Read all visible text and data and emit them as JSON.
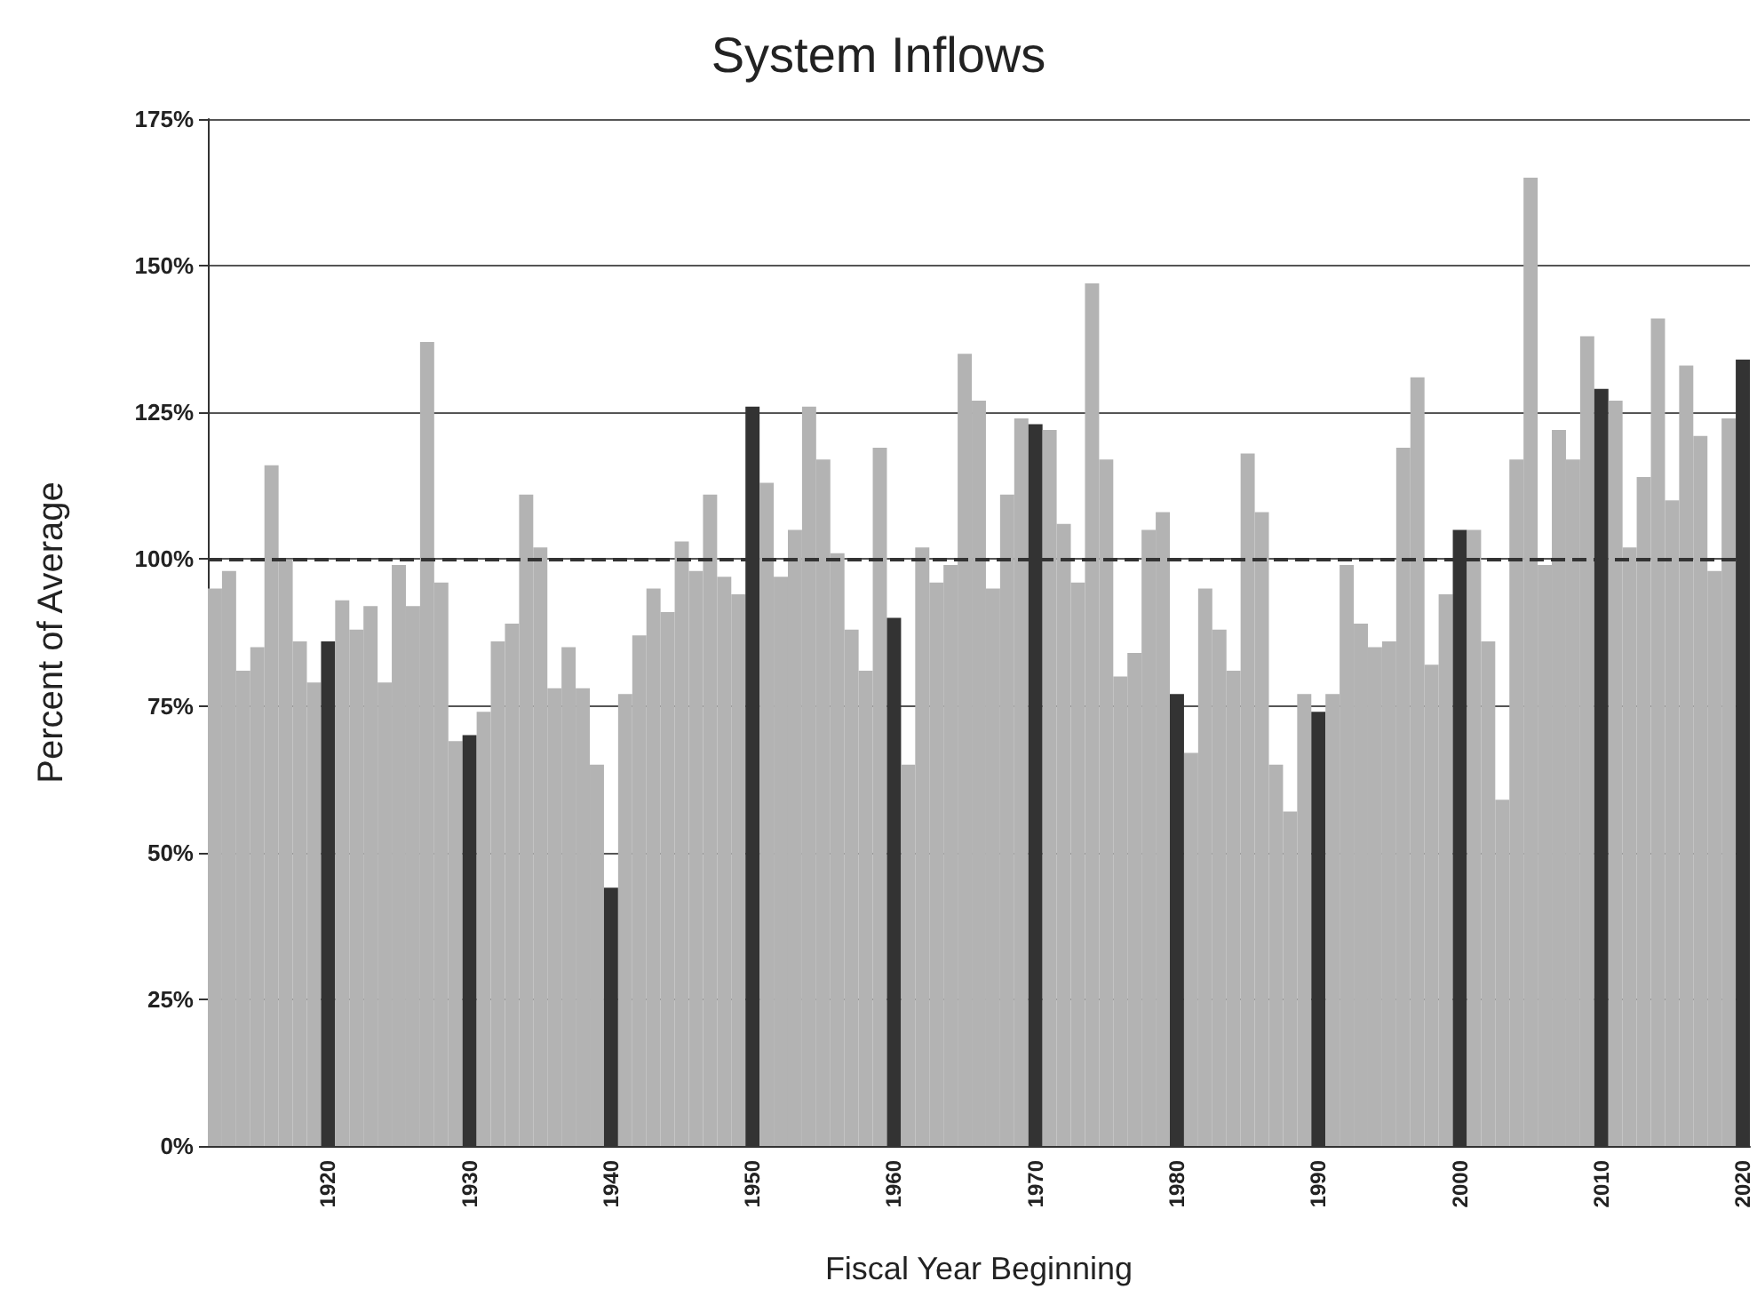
{
  "chart_data": {
    "type": "bar",
    "title": "System Inflows",
    "xlabel": "Fiscal Year Beginning",
    "ylabel": "Percent of Average",
    "categories": [
      null,
      null,
      null,
      null,
      null,
      null,
      null,
      null,
      "1920",
      null,
      null,
      null,
      null,
      null,
      null,
      null,
      null,
      null,
      "1930",
      null,
      null,
      null,
      null,
      null,
      null,
      null,
      null,
      null,
      "1940",
      null,
      null,
      null,
      null,
      null,
      null,
      null,
      null,
      null,
      "1950",
      null,
      null,
      null,
      null,
      null,
      null,
      null,
      null,
      null,
      "1960",
      null,
      null,
      null,
      null,
      null,
      null,
      null,
      null,
      null,
      "1970",
      null,
      null,
      null,
      null,
      null,
      null,
      null,
      null,
      null,
      "1980",
      null,
      null,
      null,
      null,
      null,
      null,
      null,
      null,
      null,
      "1990",
      null,
      null,
      null,
      null,
      null,
      null,
      null,
      null,
      null,
      "2000",
      null,
      null,
      null,
      null,
      null,
      null,
      null,
      null,
      null,
      "2010",
      null,
      null,
      null,
      null,
      null,
      null,
      null,
      null,
      null,
      "2020"
    ],
    "values": [
      95,
      98,
      81,
      85,
      116,
      100,
      86,
      79,
      86,
      93,
      88,
      92,
      79,
      99,
      92,
      137,
      96,
      69,
      70,
      74,
      86,
      89,
      111,
      102,
      78,
      85,
      78,
      65,
      44,
      77,
      87,
      95,
      91,
      103,
      98,
      111,
      97,
      94,
      126,
      113,
      97,
      105,
      126,
      117,
      101,
      88,
      81,
      119,
      90,
      65,
      102,
      96,
      99,
      135,
      127,
      95,
      111,
      124,
      123,
      122,
      106,
      96,
      147,
      117,
      80,
      84,
      105,
      108,
      77,
      67,
      95,
      88,
      81,
      118,
      108,
      65,
      57,
      77,
      74,
      77,
      99,
      89,
      85,
      86,
      119,
      131,
      82,
      94,
      105,
      105,
      86,
      59,
      117,
      165,
      99,
      122,
      117,
      138,
      129,
      127,
      102,
      114,
      141,
      110,
      133,
      121,
      98,
      124,
      134
    ],
    "colors": [
      "#b3b3b3",
      "#b3b3b3",
      "#b3b3b3",
      "#b3b3b3",
      "#b3b3b3",
      "#b3b3b3",
      "#b3b3b3",
      "#b3b3b3",
      "#333333",
      "#b3b3b3",
      "#b3b3b3",
      "#b3b3b3",
      "#b3b3b3",
      "#b3b3b3",
      "#b3b3b3",
      "#b3b3b3",
      "#b3b3b3",
      "#b3b3b3",
      "#333333",
      "#b3b3b3",
      "#b3b3b3",
      "#b3b3b3",
      "#b3b3b3",
      "#b3b3b3",
      "#b3b3b3",
      "#b3b3b3",
      "#b3b3b3",
      "#b3b3b3",
      "#333333",
      "#b3b3b3",
      "#b3b3b3",
      "#b3b3b3",
      "#b3b3b3",
      "#b3b3b3",
      "#b3b3b3",
      "#b3b3b3",
      "#b3b3b3",
      "#b3b3b3",
      "#333333",
      "#b3b3b3",
      "#b3b3b3",
      "#b3b3b3",
      "#b3b3b3",
      "#b3b3b3",
      "#b3b3b3",
      "#b3b3b3",
      "#b3b3b3",
      "#b3b3b3",
      "#333333",
      "#b3b3b3",
      "#b3b3b3",
      "#b3b3b3",
      "#b3b3b3",
      "#b3b3b3",
      "#b3b3b3",
      "#b3b3b3",
      "#b3b3b3",
      "#b3b3b3",
      "#333333",
      "#b3b3b3",
      "#b3b3b3",
      "#b3b3b3",
      "#b3b3b3",
      "#b3b3b3",
      "#b3b3b3",
      "#b3b3b3",
      "#b3b3b3",
      "#b3b3b3",
      "#333333",
      "#b3b3b3",
      "#b3b3b3",
      "#b3b3b3",
      "#b3b3b3",
      "#b3b3b3",
      "#b3b3b3",
      "#b3b3b3",
      "#b3b3b3",
      "#b3b3b3",
      "#333333",
      "#b3b3b3",
      "#b3b3b3",
      "#b3b3b3",
      "#b3b3b3",
      "#b3b3b3",
      "#b3b3b3",
      "#b3b3b3",
      "#b3b3b3",
      "#b3b3b3",
      "#333333",
      "#b3b3b3",
      "#b3b3b3",
      "#b3b3b3",
      "#b3b3b3",
      "#b3b3b3",
      "#b3b3b3",
      "#b3b3b3",
      "#b3b3b3",
      "#b3b3b3",
      "#333333",
      "#b3b3b3",
      "#b3b3b3",
      "#b3b3b3",
      "#b3b3b3",
      "#b3b3b3",
      "#b3b3b3",
      "#b3b3b3",
      "#b3b3b3",
      "#b3b3b3",
      "#333333"
    ],
    "ylim": [
      0,
      175
    ],
    "yticks": [
      {
        "value": 0,
        "label": "0%"
      },
      {
        "value": 25,
        "label": "25%"
      },
      {
        "value": 50,
        "label": "50%"
      },
      {
        "value": 75,
        "label": "75%"
      },
      {
        "value": 100,
        "label": "100%"
      },
      {
        "value": 125,
        "label": "125%"
      },
      {
        "value": 150,
        "label": "150%"
      },
      {
        "value": 175,
        "label": "175%"
      }
    ],
    "grid": "y",
    "ref_lines": [
      {
        "axis": "y",
        "value": 100,
        "color": "#333333",
        "line_style": "dashed"
      }
    ]
  }
}
